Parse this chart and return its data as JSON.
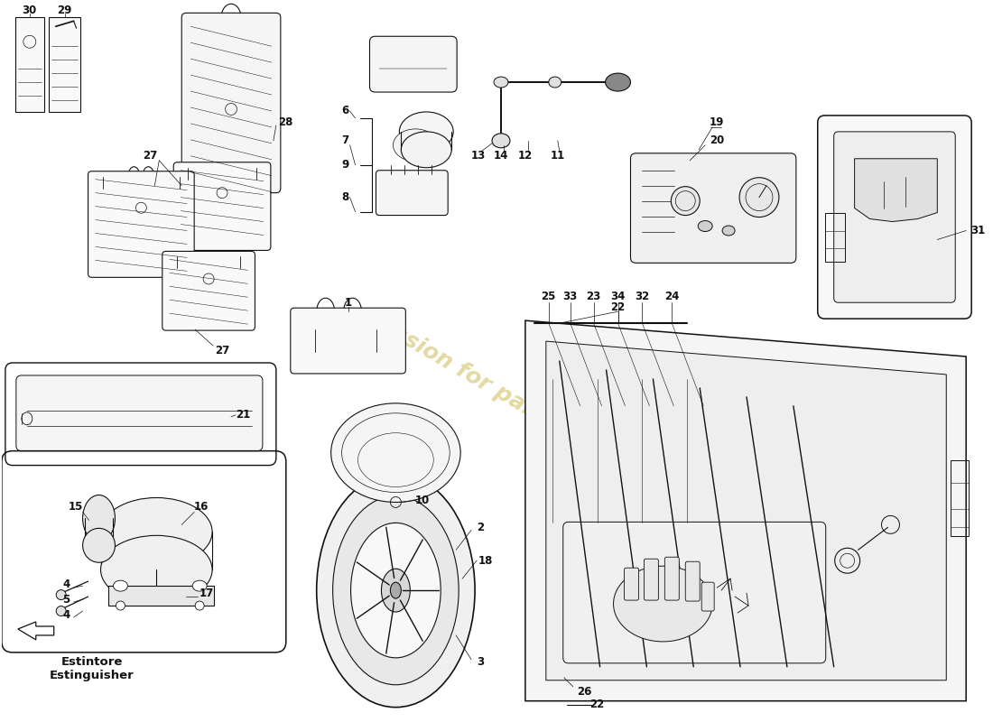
{
  "bg_color": "#ffffff",
  "line_color": "#111111",
  "watermark_color": "#c8b448",
  "label_fontsize": 8.5,
  "annotation_text": "Estintore\nEstinguisher"
}
